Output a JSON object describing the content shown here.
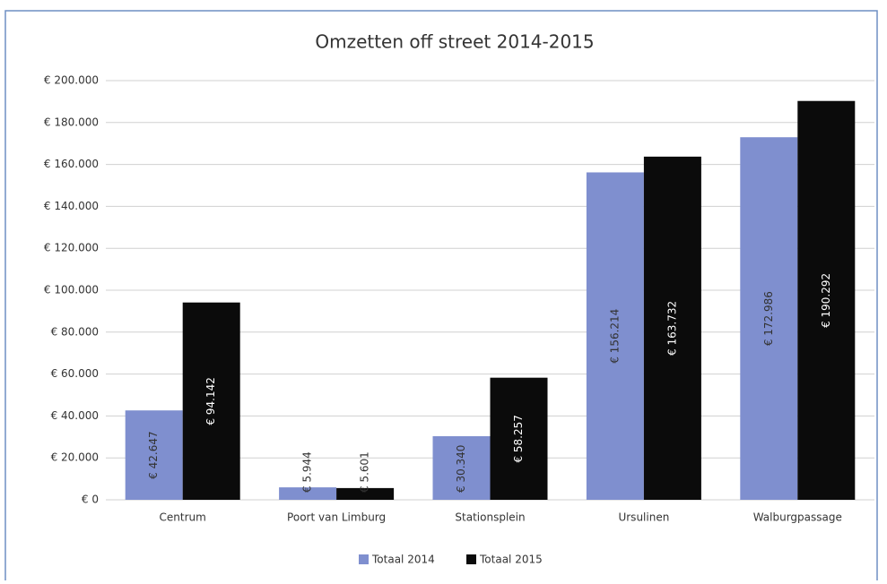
{
  "chart_data": {
    "type": "bar",
    "title": "Omzetten off street 2014-2015",
    "categories": [
      "Centrum",
      "Poort van Limburg",
      "Stationsplein",
      "Ursulinen",
      "Walburgpassage"
    ],
    "series": [
      {
        "name": "Totaal 2014",
        "color": "#7f8fcf",
        "values": [
          42647,
          5944,
          30340,
          156214,
          172986
        ],
        "value_labels": [
          "€ 42.647",
          "€ 5.944",
          "€ 30.340",
          "€ 156.214",
          "€ 172.986"
        ]
      },
      {
        "name": "Totaal 2015",
        "color": "#0b0b0b",
        "values": [
          94142,
          5601,
          58257,
          163732,
          190292
        ],
        "value_labels": [
          "€ 94.142",
          "€ 5.601",
          "€ 58.257",
          "€ 163.732",
          "€ 190.292"
        ]
      }
    ],
    "ylim": [
      0,
      200000
    ],
    "yticks": [
      {
        "value": 0,
        "label": "€ 0"
      },
      {
        "value": 20000,
        "label": "€ 20.000"
      },
      {
        "value": 40000,
        "label": "€ 40.000"
      },
      {
        "value": 60000,
        "label": "€ 60.000"
      },
      {
        "value": 80000,
        "label": "€ 80.000"
      },
      {
        "value": 100000,
        "label": "€ 100.000"
      },
      {
        "value": 120000,
        "label": "€ 120.000"
      },
      {
        "value": 140000,
        "label": "€ 140.000"
      },
      {
        "value": 160000,
        "label": "€ 160.000"
      },
      {
        "value": 180000,
        "label": "€ 180.000"
      },
      {
        "value": 200000,
        "label": "€ 200.000"
      }
    ],
    "grid": true,
    "legend": "bottom"
  }
}
